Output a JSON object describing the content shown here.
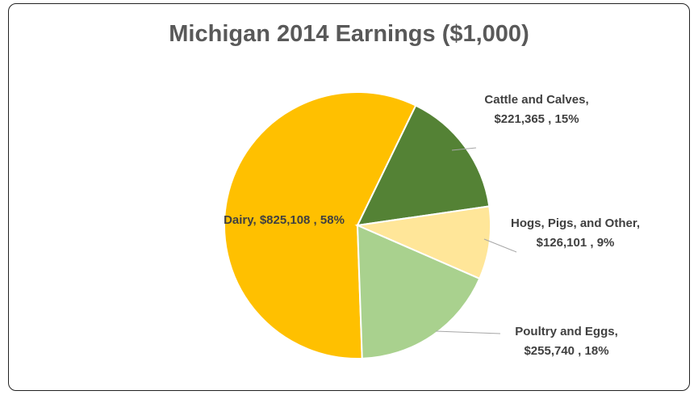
{
  "chart_data": {
    "type": "pie",
    "title": "Michigan 2014 Earnings ($1,000)",
    "categories": [
      "Dairy",
      "Cattle and Calves",
      "Hogs, Pigs, and Other",
      "Poultry and Eggs"
    ],
    "values": [
      825108,
      221365,
      126101,
      255740
    ],
    "value_labels": [
      "$825,108 , 58%",
      "$221,365 , 15%",
      "$126,101 , 9%",
      "$255,740 , 18%"
    ],
    "percents": [
      58,
      15,
      9,
      18
    ],
    "colors": [
      "#ffc000",
      "#548235",
      "#ffe699",
      "#a9d18e"
    ]
  }
}
